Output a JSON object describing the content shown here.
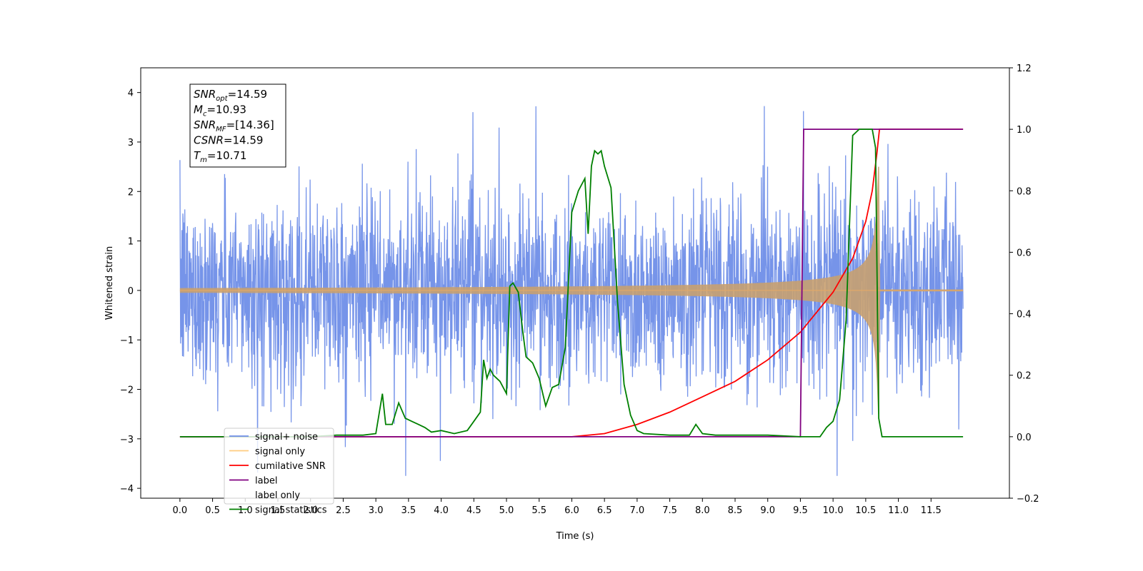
{
  "chart_data": {
    "type": "line",
    "xlabel": "Time (s)",
    "ylabel": "Whitened strain",
    "xlim": [
      -0.6,
      12.7
    ],
    "ylim": [
      -4.2,
      4.5
    ],
    "y2lim": [
      -0.2,
      1.2
    ],
    "grid": false,
    "legend_position": "lower-left",
    "x_ticks": [
      "0.0",
      "0.5",
      "1.0",
      "1.5",
      "2.0",
      "2.5",
      "3.0",
      "3.5",
      "4.0",
      "4.5",
      "5.0",
      "5.5",
      "6.0",
      "6.5",
      "7.0",
      "7.5",
      "8.0",
      "8.5",
      "9.0",
      "9.5",
      "10.0",
      "10.5",
      "11.0",
      "11.5"
    ],
    "y_ticks": [
      "4",
      "3",
      "2",
      "1",
      "0",
      "−1",
      "−2",
      "−3",
      "−4"
    ],
    "y2_ticks": [
      "1.2",
      "1.0",
      "0.8",
      "0.6",
      "0.4",
      "0.2",
      "0.0",
      "−0.2"
    ],
    "annotation": {
      "lines": [
        {
          "main": "SNR",
          "sub": "opt",
          "value": "=14.59"
        },
        {
          "main": "M",
          "sub": "c",
          "value": "=10.93"
        },
        {
          "main": "SNR",
          "sub": "MF",
          "value": "=[14.36]"
        },
        {
          "main": "CSNR",
          "sub": "",
          "value": "=14.59"
        },
        {
          "main": "T",
          "sub": "m",
          "value": "=10.71"
        }
      ]
    },
    "series": [
      {
        "name": "signal+ noise",
        "color": "#6f8ee8",
        "axis": "left",
        "kind": "noise",
        "x_range": [
          0.0,
          11.99
        ],
        "amplitude_band": [
          -2.5,
          2.5
        ]
      },
      {
        "name": "signal only",
        "color": "#ffbb55",
        "axis": "left",
        "kind": "chirp",
        "x_range": [
          0.0,
          11.99
        ],
        "merger_time": 10.71
      },
      {
        "name": "cumilative SNR",
        "color": "#ff0000",
        "axis": "right",
        "x": [
          0.0,
          6.0,
          6.5,
          7.0,
          7.5,
          8.0,
          8.5,
          9.0,
          9.5,
          10.0,
          10.3,
          10.5,
          10.6,
          10.67,
          10.71,
          11.0,
          11.99
        ],
        "y": [
          0.0,
          0.0,
          0.01,
          0.04,
          0.08,
          0.13,
          0.18,
          0.25,
          0.34,
          0.47,
          0.58,
          0.7,
          0.8,
          0.92,
          1.0,
          1.0,
          1.0
        ]
      },
      {
        "name": "label",
        "color": "#800080",
        "axis": "right",
        "x": [
          0.0,
          9.5,
          9.55,
          11.99
        ],
        "y": [
          0.0,
          0.0,
          1.0,
          1.0
        ]
      },
      {
        "name": "label only",
        "color": "#800080",
        "axis": "right",
        "x": [],
        "y": []
      },
      {
        "name": "signal statistics",
        "color": "#008000",
        "axis": "right",
        "x": [
          0.0,
          2.0,
          2.4,
          2.8,
          3.0,
          3.1,
          3.15,
          3.25,
          3.35,
          3.45,
          3.55,
          3.65,
          3.75,
          3.85,
          4.0,
          4.2,
          4.4,
          4.5,
          4.6,
          4.65,
          4.7,
          4.75,
          4.8,
          4.9,
          5.0,
          5.05,
          5.1,
          5.18,
          5.25,
          5.3,
          5.4,
          5.5,
          5.6,
          5.7,
          5.8,
          5.9,
          6.0,
          6.1,
          6.2,
          6.25,
          6.3,
          6.35,
          6.4,
          6.45,
          6.5,
          6.6,
          6.7,
          6.8,
          6.9,
          7.0,
          7.1,
          7.5,
          7.8,
          7.9,
          8.0,
          8.2,
          9.0,
          9.5,
          9.8,
          9.9,
          10.0,
          10.1,
          10.2,
          10.3,
          10.4,
          10.6,
          10.65,
          10.7,
          10.75,
          11.99
        ],
        "y": [
          0.0,
          0.0,
          0.005,
          0.005,
          0.01,
          0.14,
          0.04,
          0.04,
          0.11,
          0.06,
          0.05,
          0.04,
          0.03,
          0.015,
          0.02,
          0.01,
          0.02,
          0.05,
          0.08,
          0.25,
          0.19,
          0.22,
          0.2,
          0.18,
          0.14,
          0.49,
          0.5,
          0.47,
          0.34,
          0.26,
          0.24,
          0.19,
          0.1,
          0.16,
          0.17,
          0.29,
          0.73,
          0.8,
          0.84,
          0.66,
          0.88,
          0.93,
          0.92,
          0.93,
          0.88,
          0.81,
          0.44,
          0.17,
          0.07,
          0.02,
          0.01,
          0.005,
          0.005,
          0.04,
          0.01,
          0.005,
          0.005,
          0.0,
          0.0,
          0.03,
          0.05,
          0.12,
          0.38,
          0.98,
          1.0,
          1.0,
          0.94,
          0.06,
          0.0,
          0.0
        ]
      }
    ]
  }
}
